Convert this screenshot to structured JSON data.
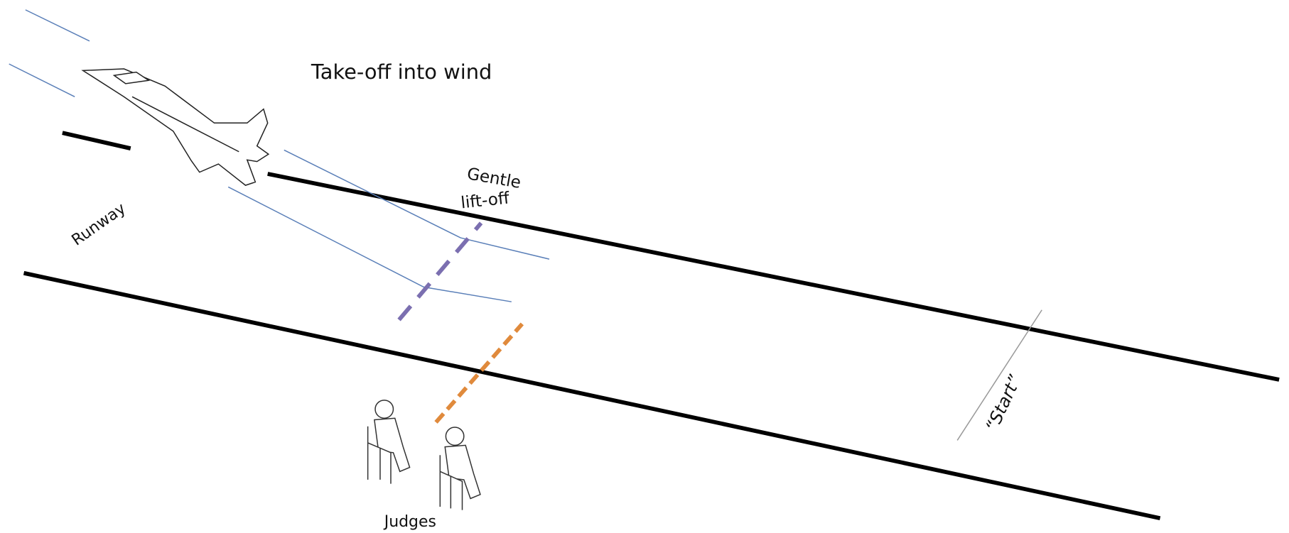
{
  "title": "Take-off into wind",
  "labels": {
    "gentle_lift_off": [
      "Gentle",
      "lift-off"
    ],
    "runway": "Runway",
    "judges": "Judges",
    "start": "“Start”"
  }
}
